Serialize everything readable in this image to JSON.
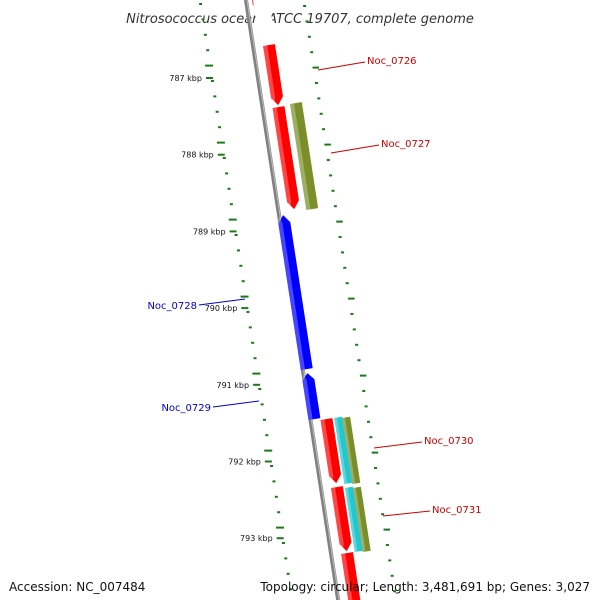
{
  "title": "Nitrosococcus oceani ATCC 19707, complete genome",
  "footer": {
    "accession": "Accession: NC_007484",
    "topology": "Topology: circular; Length: 3,481,691 bp; Genes: 3,027"
  },
  "colors": {
    "backbone": "#808080",
    "forward_gene": "#ff0000",
    "reverse_gene": "#0000ff",
    "olive_feature": "#7a8f2a",
    "cyan_feature": "#22c8d0",
    "tick": "#1a7a1a",
    "forward_label": "#cc0000",
    "reverse_label": "#0000cc"
  },
  "scale_ticks": [
    {
      "label": "787 kbp",
      "kbp": 787
    },
    {
      "label": "788 kbp",
      "kbp": 788
    },
    {
      "label": "789 kbp",
      "kbp": 789
    },
    {
      "label": "790 kbp",
      "kbp": 790
    },
    {
      "label": "791 kbp",
      "kbp": 791
    },
    {
      "label": "792 kbp",
      "kbp": 792
    },
    {
      "label": "793 kbp",
      "kbp": 793
    }
  ],
  "genes": [
    {
      "name": "Noc_0726",
      "strand": "forward"
    },
    {
      "name": "Noc_0727",
      "strand": "forward"
    },
    {
      "name": "Noc_0728",
      "strand": "reverse"
    },
    {
      "name": "Noc_0729",
      "strand": "reverse"
    },
    {
      "name": "Noc_0730",
      "strand": "forward"
    },
    {
      "name": "Noc_0731",
      "strand": "forward"
    }
  ]
}
